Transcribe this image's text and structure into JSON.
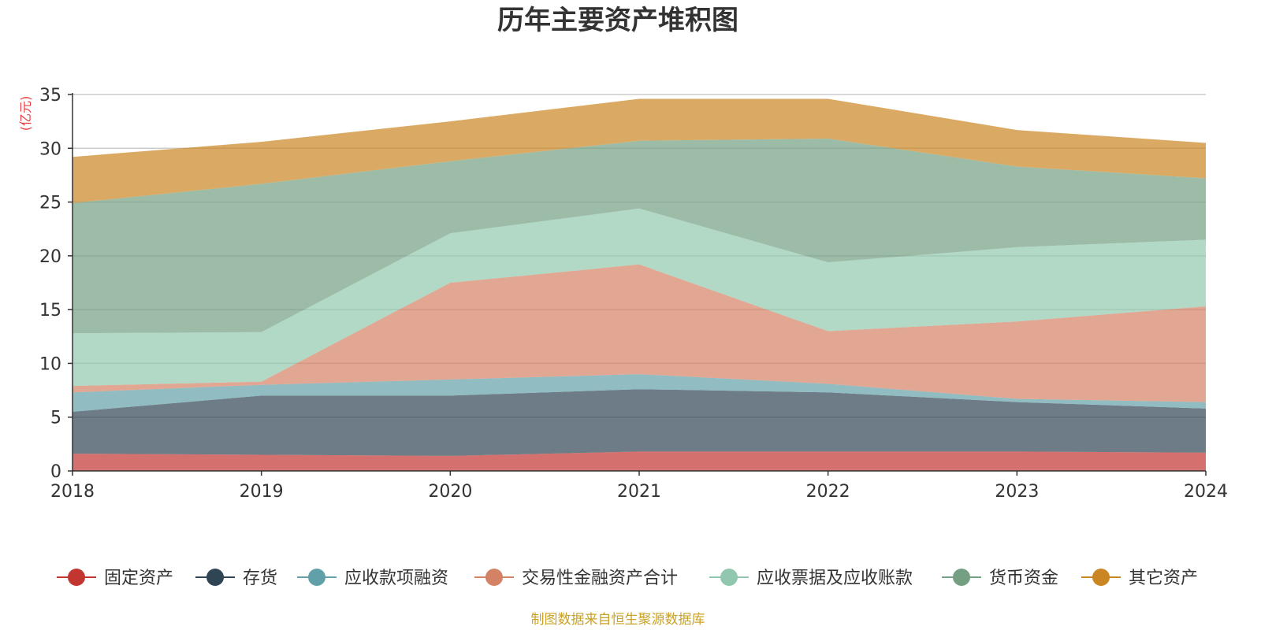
{
  "chart_data": {
    "type": "area",
    "stacked": true,
    "title": "历年主要资产堆积图",
    "ylabel": "(亿元)",
    "x": [
      "2018",
      "2019",
      "2020",
      "2021",
      "2022",
      "2023",
      "2024"
    ],
    "ylim": [
      0,
      35
    ],
    "yticks": [
      0,
      5,
      10,
      15,
      20,
      25,
      30,
      35
    ],
    "grid": true,
    "legend_position": "bottom",
    "series": [
      {
        "name": "固定资产",
        "color": "#c23531",
        "values": [
          1.6,
          1.5,
          1.4,
          1.8,
          1.8,
          1.8,
          1.7
        ]
      },
      {
        "name": "存货",
        "color": "#2f4554",
        "values": [
          3.9,
          5.5,
          5.6,
          5.8,
          5.5,
          4.6,
          4.1
        ]
      },
      {
        "name": "应收款项融资",
        "color": "#61a0a8",
        "values": [
          1.8,
          1.0,
          1.5,
          1.4,
          0.8,
          0.3,
          0.6
        ]
      },
      {
        "name": "交易性金融资产合计",
        "color": "#d48265",
        "values": [
          0.6,
          0.3,
          9.0,
          10.2,
          4.9,
          7.2,
          8.9
        ]
      },
      {
        "name": "应收票据及应收账款",
        "color": "#91c7ae",
        "values": [
          4.9,
          4.6,
          4.6,
          5.2,
          6.4,
          6.9,
          6.2
        ]
      },
      {
        "name": "货币资金",
        "color": "#749f83",
        "values": [
          12.1,
          13.8,
          6.7,
          6.3,
          11.5,
          7.5,
          5.7
        ]
      },
      {
        "name": "其它资产",
        "color": "#ca8622",
        "values": [
          4.3,
          3.9,
          3.7,
          3.9,
          3.7,
          3.4,
          3.3
        ]
      }
    ]
  },
  "source_note": "制图数据来自恒生聚源数据库",
  "colors": {
    "ylabel": "#e8383d",
    "source": "#c9a227",
    "grid": "#cccccc",
    "axis": "#333333"
  }
}
